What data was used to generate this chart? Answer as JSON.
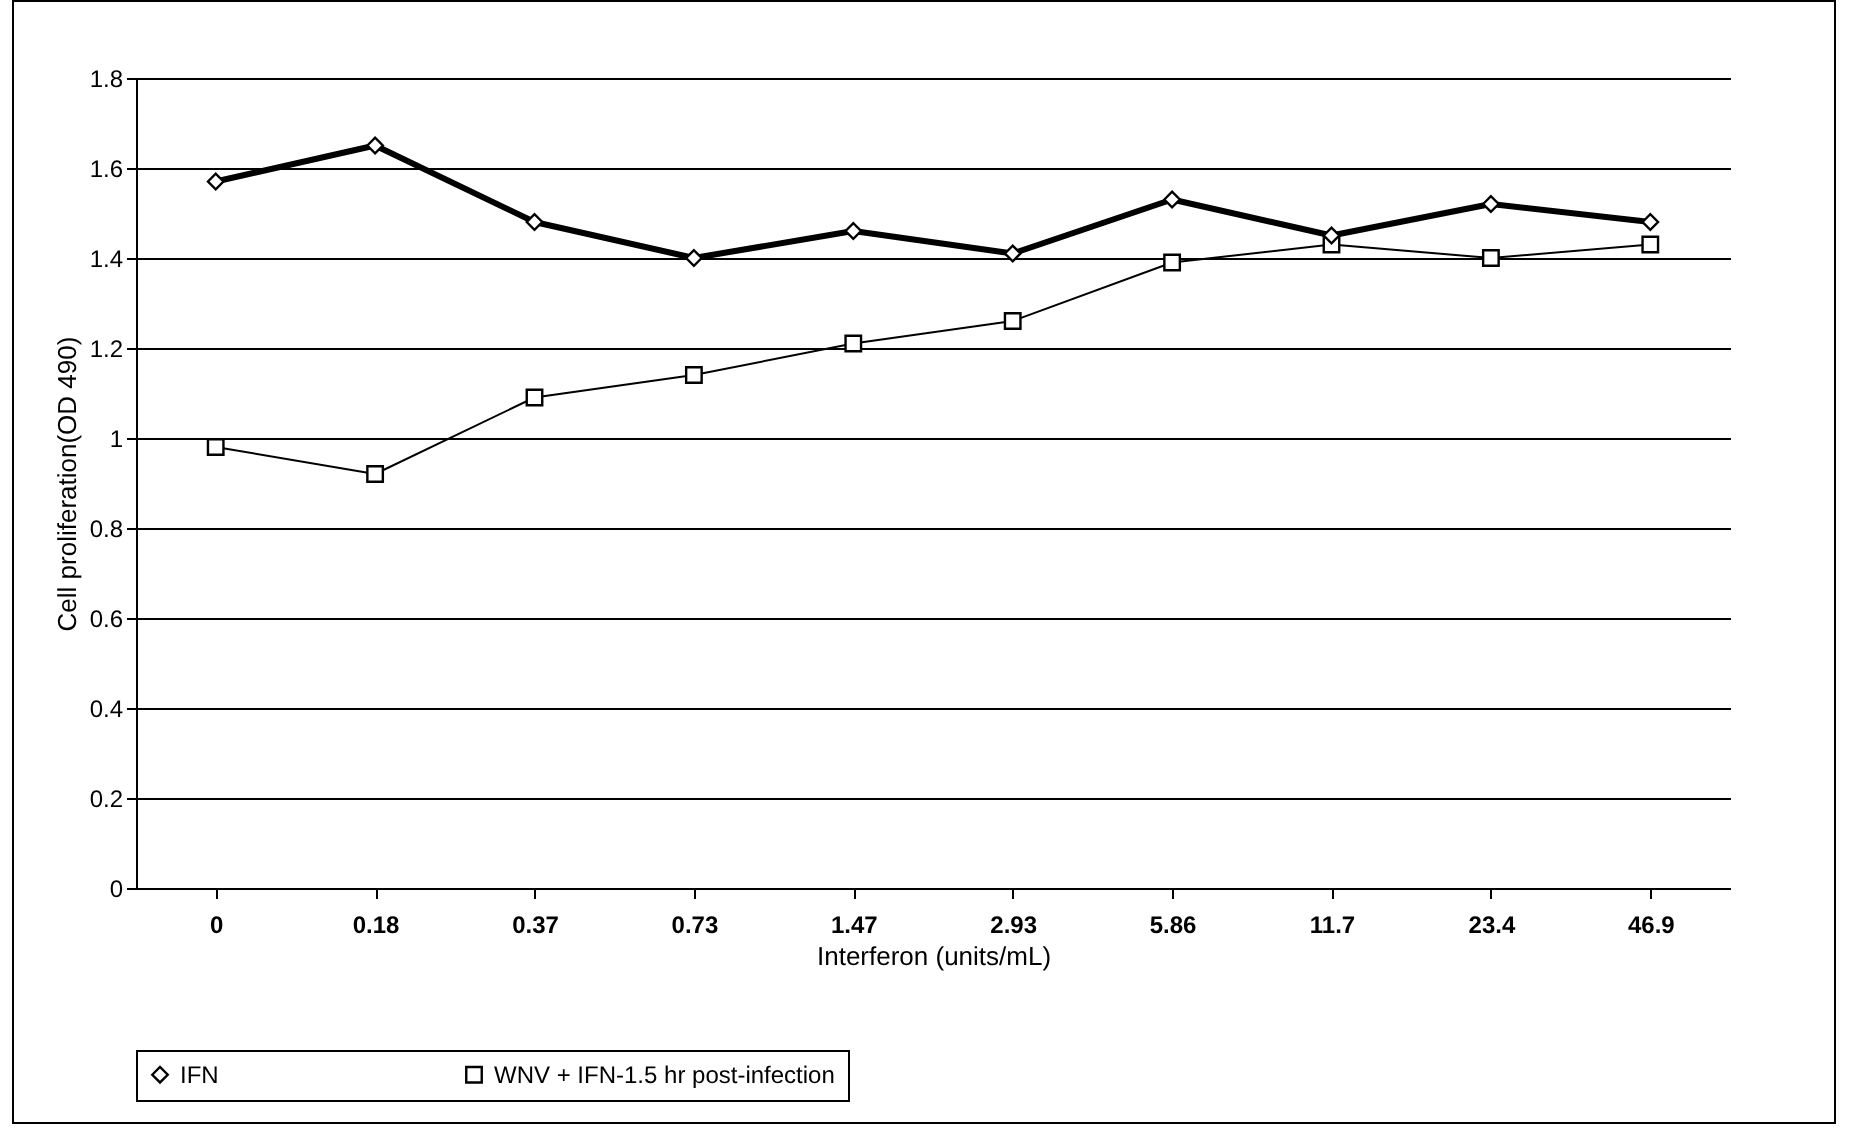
{
  "chart_data": {
    "type": "line",
    "xlabel": "Interferon (units/mL)",
    "ylabel": "Cell proliferation(OD 490)",
    "categories": [
      "0",
      "0.18",
      "0.37",
      "0.73",
      "1.47",
      "2.93",
      "5.86",
      "11.7",
      "23.4",
      "46.9"
    ],
    "series": [
      {
        "name": "IFN",
        "color": "#000000",
        "marker": "diamond",
        "values": [
          1.57,
          1.65,
          1.48,
          1.4,
          1.46,
          1.41,
          1.53,
          1.45,
          1.52,
          1.48
        ]
      },
      {
        "name": "WNV + IFN-1.5 hr post-infection",
        "color": "#000000",
        "marker": "square",
        "values": [
          0.98,
          0.92,
          1.09,
          1.14,
          1.21,
          1.26,
          1.39,
          1.43,
          1.4,
          1.43
        ]
      }
    ],
    "ylim": [
      0,
      1.8
    ],
    "yticks": [
      0,
      0.2,
      0.4,
      0.6,
      0.8,
      1,
      1.2,
      1.4,
      1.6,
      1.8
    ],
    "grid": "y",
    "legend": "bottom"
  }
}
